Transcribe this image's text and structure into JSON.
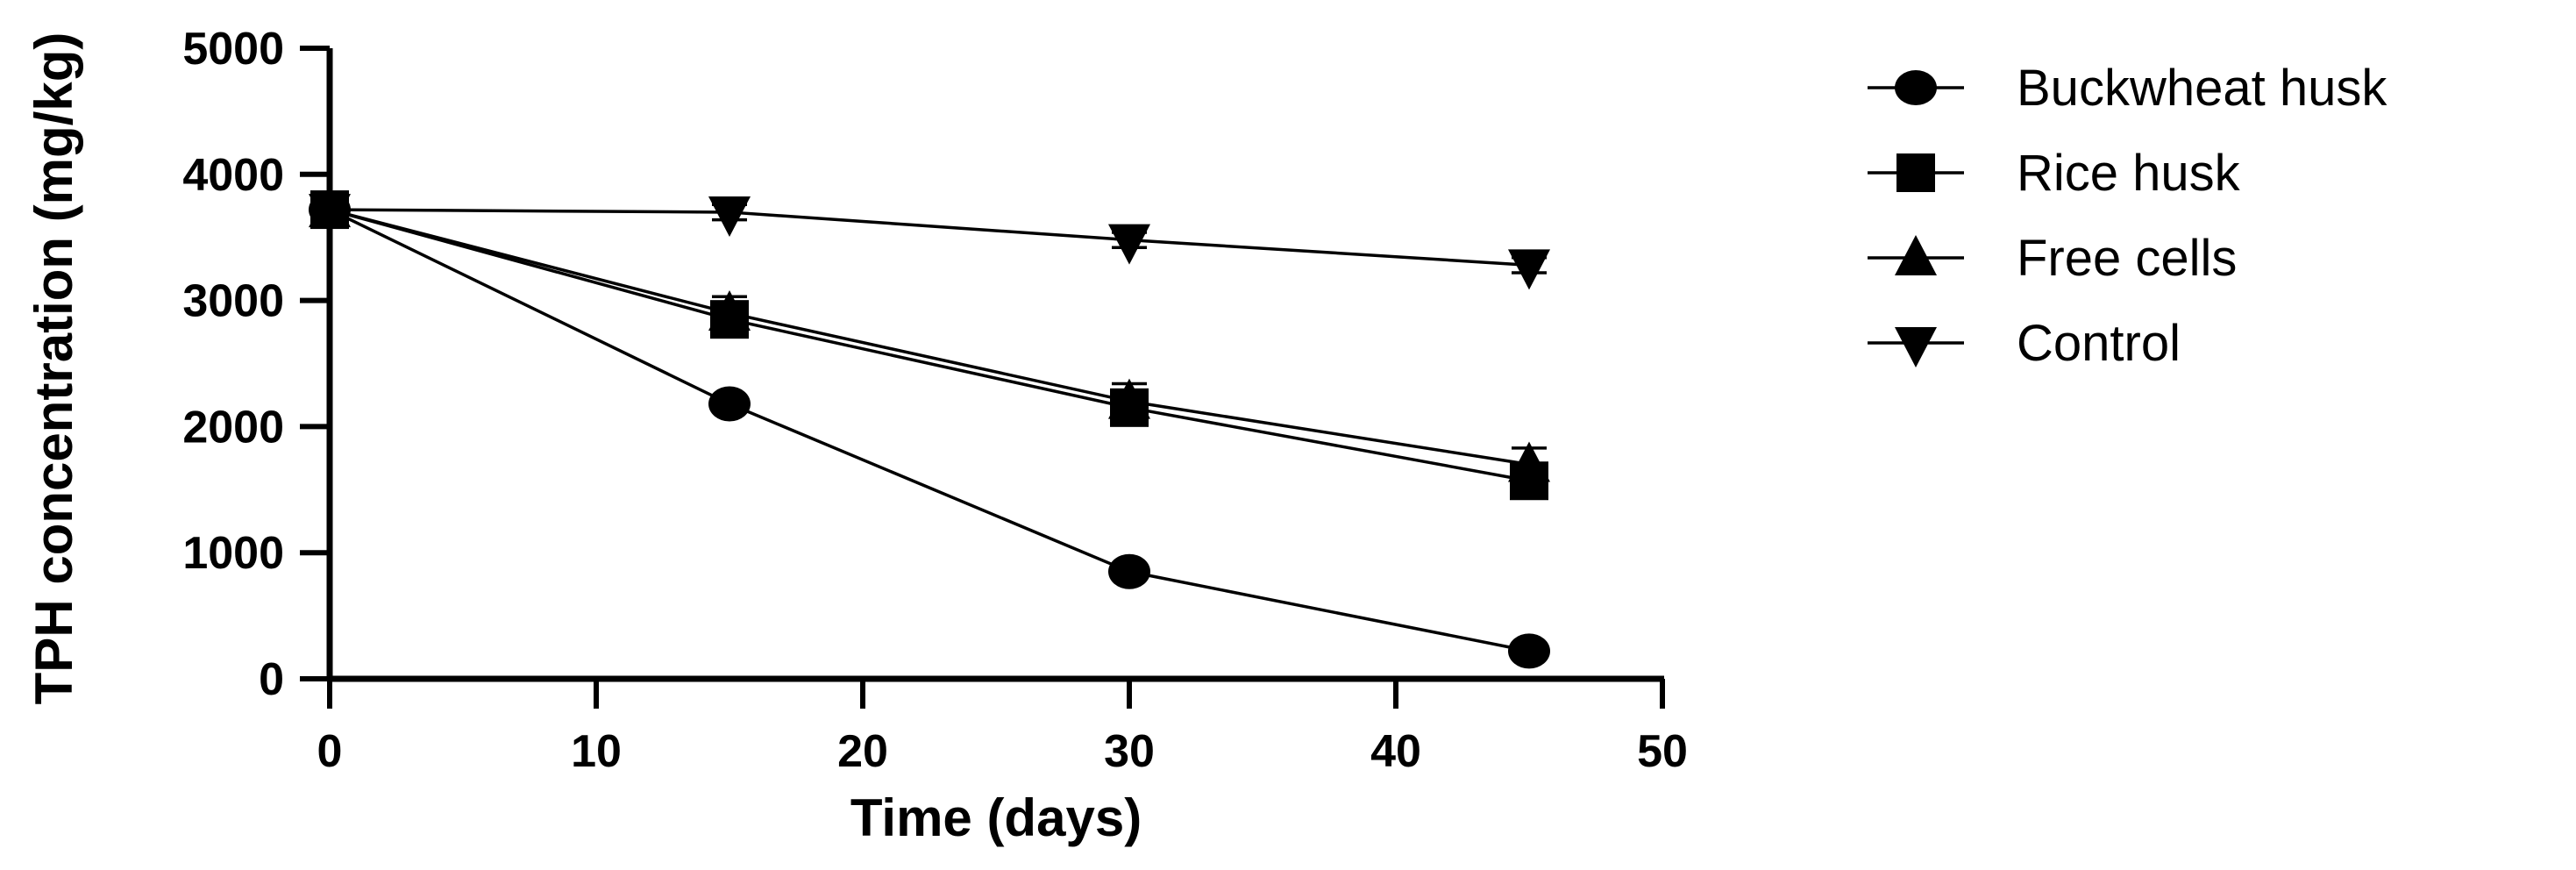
{
  "chart_data": {
    "type": "line",
    "title": "",
    "xlabel": "Time (days)",
    "ylabel": "TPH concentration (mg/kg)",
    "xlim": [
      0,
      50
    ],
    "ylim": [
      0,
      5000
    ],
    "xticks": [
      "0",
      "10",
      "20",
      "30",
      "40",
      "50"
    ],
    "yticks": [
      "0",
      "1000",
      "2000",
      "3000",
      "4000",
      "5000"
    ],
    "grid": false,
    "legend_position": "right",
    "x": [
      0,
      15,
      30,
      45
    ],
    "series": [
      {
        "name": "Buckwheat husk",
        "marker": "circle",
        "values": [
          3720,
          2180,
          850,
          220
        ],
        "errors": [
          60,
          40,
          40,
          30
        ]
      },
      {
        "name": "Rice husk",
        "marker": "square",
        "values": [
          3720,
          2850,
          2150,
          1570
        ],
        "errors": [
          60,
          60,
          70,
          70
        ]
      },
      {
        "name": "Free cells",
        "marker": "triangle-up",
        "values": [
          3720,
          2900,
          2200,
          1700
        ],
        "errors": [
          60,
          130,
          140,
          130
        ]
      },
      {
        "name": "Control",
        "marker": "triangle-down",
        "values": [
          3720,
          3700,
          3480,
          3280
        ],
        "errors": [
          60,
          60,
          60,
          60
        ]
      }
    ],
    "colors": {
      "line": "#000000",
      "background": "#ffffff"
    }
  }
}
